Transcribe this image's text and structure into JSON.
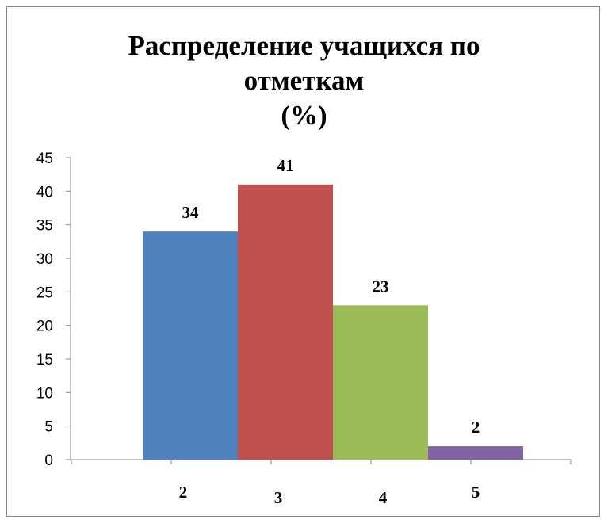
{
  "chart_data": {
    "type": "bar",
    "title_lines": [
      "Распределение учащихся по",
      "отметкам",
      "(%)"
    ],
    "categories": [
      "2",
      "3",
      "4",
      "5"
    ],
    "values": [
      34,
      41,
      23,
      2
    ],
    "colors": [
      "#4F81BD",
      "#C0504D",
      "#9BBB59",
      "#8064A2"
    ],
    "ylim": [
      0,
      45
    ],
    "yticks": [
      0,
      5,
      10,
      15,
      20,
      25,
      30,
      35,
      40,
      45
    ],
    "grid": false,
    "legend": "none"
  }
}
